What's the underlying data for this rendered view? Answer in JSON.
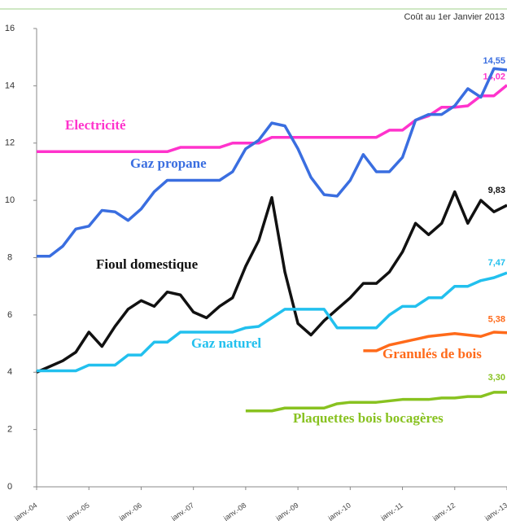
{
  "chart_data": {
    "type": "line",
    "subtitle": "Coût au 1er Janvier 2013",
    "x": [
      0,
      3,
      6,
      9,
      12,
      15,
      18,
      21,
      24,
      27,
      30,
      33,
      36,
      39,
      42,
      45,
      48,
      51,
      54,
      57,
      60,
      63,
      66,
      69,
      72,
      75,
      78,
      81,
      84,
      87,
      90,
      93,
      96,
      99,
      102,
      105,
      108
    ],
    "xlim": [
      0,
      108
    ],
    "xticks": [
      {
        "value": 0,
        "label": "janv.-04"
      },
      {
        "value": 12,
        "label": "janv.-05"
      },
      {
        "value": 24,
        "label": "janv.-06"
      },
      {
        "value": 36,
        "label": "janv.-07"
      },
      {
        "value": 48,
        "label": "janv.-08"
      },
      {
        "value": 60,
        "label": "janv.-09"
      },
      {
        "value": 72,
        "label": "janv.-10"
      },
      {
        "value": 84,
        "label": "janv.-11"
      },
      {
        "value": 96,
        "label": "janv.-12"
      },
      {
        "value": 108,
        "label": "janv.-13"
      }
    ],
    "ylim": [
      0,
      16
    ],
    "yticks": [
      0,
      2,
      4,
      6,
      8,
      10,
      12,
      14,
      16
    ],
    "grid": false,
    "series": [
      {
        "name": "Electricité",
        "color": "#ff33cc",
        "values": [
          11.7,
          11.7,
          11.7,
          11.7,
          11.7,
          11.7,
          11.7,
          11.7,
          11.7,
          11.7,
          11.7,
          11.85,
          11.85,
          11.85,
          11.85,
          12.0,
          12.0,
          12.0,
          12.2,
          12.2,
          12.2,
          12.2,
          12.2,
          12.2,
          12.2,
          12.2,
          12.2,
          12.45,
          12.45,
          12.8,
          12.95,
          13.25,
          13.25,
          13.3,
          13.65,
          13.65,
          14.02
        ],
        "value_labels": [
          null,
          null,
          null,
          null,
          null,
          null,
          null,
          null,
          null,
          null,
          null,
          null,
          null,
          null,
          null,
          null,
          null,
          null,
          null,
          null,
          null,
          null,
          null,
          null,
          null,
          null,
          null,
          null,
          null,
          null,
          null,
          null,
          null,
          null,
          null,
          null,
          "14,02"
        ]
      },
      {
        "name": "Gaz propane",
        "color": "#3a6ee0",
        "values": [
          8.05,
          8.05,
          8.4,
          9.0,
          9.1,
          9.65,
          9.6,
          9.3,
          9.7,
          10.3,
          10.7,
          10.7,
          10.7,
          10.7,
          10.7,
          11.0,
          11.8,
          12.1,
          12.7,
          12.6,
          11.8,
          10.8,
          10.2,
          10.15,
          10.7,
          11.6,
          11.0,
          11.0,
          11.5,
          12.8,
          13.0,
          13.0,
          13.3,
          13.9,
          13.6,
          14.6,
          14.55
        ],
        "value_labels": [
          null,
          null,
          null,
          null,
          null,
          null,
          null,
          null,
          null,
          null,
          null,
          null,
          null,
          null,
          null,
          null,
          null,
          null,
          null,
          null,
          null,
          null,
          null,
          null,
          null,
          null,
          null,
          null,
          null,
          null,
          null,
          null,
          null,
          null,
          null,
          null,
          "14,55"
        ]
      },
      {
        "name": "Fioul domestique",
        "color": "#111111",
        "values": [
          4.0,
          4.2,
          4.4,
          4.7,
          5.4,
          4.9,
          5.6,
          6.2,
          6.5,
          6.3,
          6.8,
          6.7,
          6.1,
          5.9,
          6.3,
          6.6,
          7.7,
          8.6,
          10.1,
          7.5,
          5.7,
          5.3,
          5.8,
          6.2,
          6.6,
          7.1,
          7.1,
          7.5,
          8.2,
          9.2,
          8.8,
          9.2,
          10.3,
          9.2,
          10.0,
          9.6,
          9.83
        ],
        "value_labels": [
          null,
          null,
          null,
          null,
          null,
          null,
          null,
          null,
          null,
          null,
          null,
          null,
          null,
          null,
          null,
          null,
          null,
          null,
          null,
          null,
          null,
          null,
          null,
          null,
          null,
          null,
          null,
          null,
          null,
          null,
          null,
          null,
          null,
          null,
          null,
          null,
          "9,83"
        ]
      },
      {
        "name": "Gaz naturel",
        "color": "#22c0ee",
        "values": [
          4.05,
          4.05,
          4.05,
          4.05,
          4.25,
          4.25,
          4.25,
          4.6,
          4.6,
          5.05,
          5.05,
          5.4,
          5.4,
          5.4,
          5.4,
          5.4,
          5.55,
          5.6,
          5.9,
          6.2,
          6.2,
          6.2,
          6.2,
          5.55,
          5.55,
          5.55,
          5.55,
          6.0,
          6.3,
          6.3,
          6.6,
          6.6,
          7.0,
          7.0,
          7.2,
          7.3,
          7.47
        ],
        "value_labels": [
          null,
          null,
          null,
          null,
          null,
          null,
          null,
          null,
          null,
          null,
          null,
          null,
          null,
          null,
          null,
          null,
          null,
          null,
          null,
          null,
          null,
          null,
          null,
          null,
          null,
          null,
          null,
          null,
          null,
          null,
          null,
          null,
          null,
          null,
          null,
          null,
          "7,47"
        ]
      },
      {
        "name": "Granulés de bois",
        "color": "#ff6a1a",
        "values": [
          null,
          null,
          null,
          null,
          null,
          null,
          null,
          null,
          null,
          null,
          null,
          null,
          null,
          null,
          null,
          null,
          null,
          null,
          null,
          null,
          null,
          null,
          null,
          null,
          null,
          4.75,
          4.75,
          4.95,
          5.05,
          5.15,
          5.25,
          5.3,
          5.35,
          5.3,
          5.25,
          5.4,
          5.38
        ],
        "value_labels": [
          null,
          null,
          null,
          null,
          null,
          null,
          null,
          null,
          null,
          null,
          null,
          null,
          null,
          null,
          null,
          null,
          null,
          null,
          null,
          null,
          null,
          null,
          null,
          null,
          null,
          null,
          null,
          null,
          null,
          null,
          null,
          null,
          null,
          null,
          null,
          null,
          "5,38"
        ]
      },
      {
        "name": "Plaquettes bois bocagères",
        "color": "#88c220",
        "values": [
          null,
          null,
          null,
          null,
          null,
          null,
          null,
          null,
          null,
          null,
          null,
          null,
          null,
          null,
          null,
          null,
          2.65,
          2.65,
          2.65,
          2.75,
          2.75,
          2.75,
          2.75,
          2.9,
          2.95,
          2.95,
          2.95,
          3.0,
          3.05,
          3.05,
          3.05,
          3.1,
          3.1,
          3.15,
          3.15,
          3.3,
          3.3
        ],
        "value_labels": [
          null,
          null,
          null,
          null,
          null,
          null,
          null,
          null,
          null,
          null,
          null,
          null,
          null,
          null,
          null,
          null,
          null,
          null,
          null,
          null,
          null,
          null,
          null,
          null,
          null,
          null,
          null,
          null,
          null,
          null,
          null,
          null,
          null,
          null,
          null,
          null,
          "3,30"
        ]
      }
    ]
  }
}
